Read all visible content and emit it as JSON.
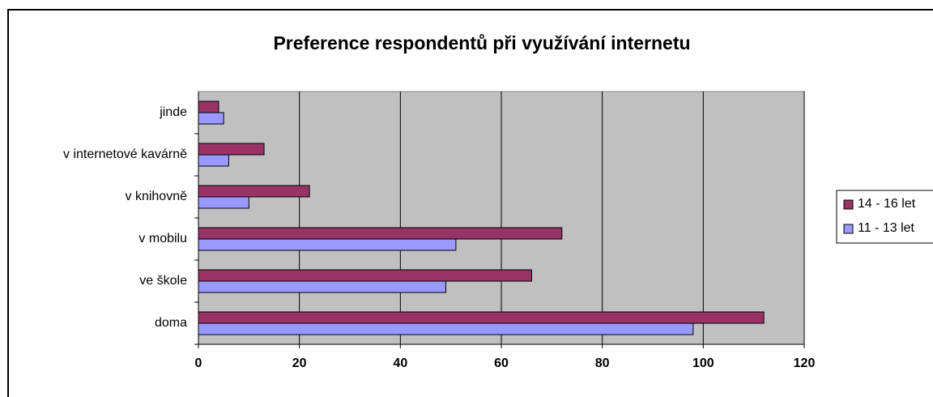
{
  "chart_data": {
    "type": "bar",
    "orientation": "horizontal",
    "title": "Preference respondentů při využívání internetu",
    "categories": [
      "doma",
      "ve škole",
      "v mobilu",
      "v knihovně",
      "v internetové kavárně",
      "jinde"
    ],
    "series": [
      {
        "name": "14 - 16 let",
        "color": "#993366",
        "values": [
          112,
          66,
          72,
          22,
          13,
          4
        ]
      },
      {
        "name": "11 - 13 let",
        "color": "#9999ff",
        "values": [
          98,
          49,
          51,
          10,
          6,
          5
        ]
      }
    ],
    "xlim": [
      0,
      120
    ],
    "xticks": [
      0,
      20,
      40,
      60,
      80,
      100,
      120
    ],
    "grid": true,
    "legend": "right"
  }
}
